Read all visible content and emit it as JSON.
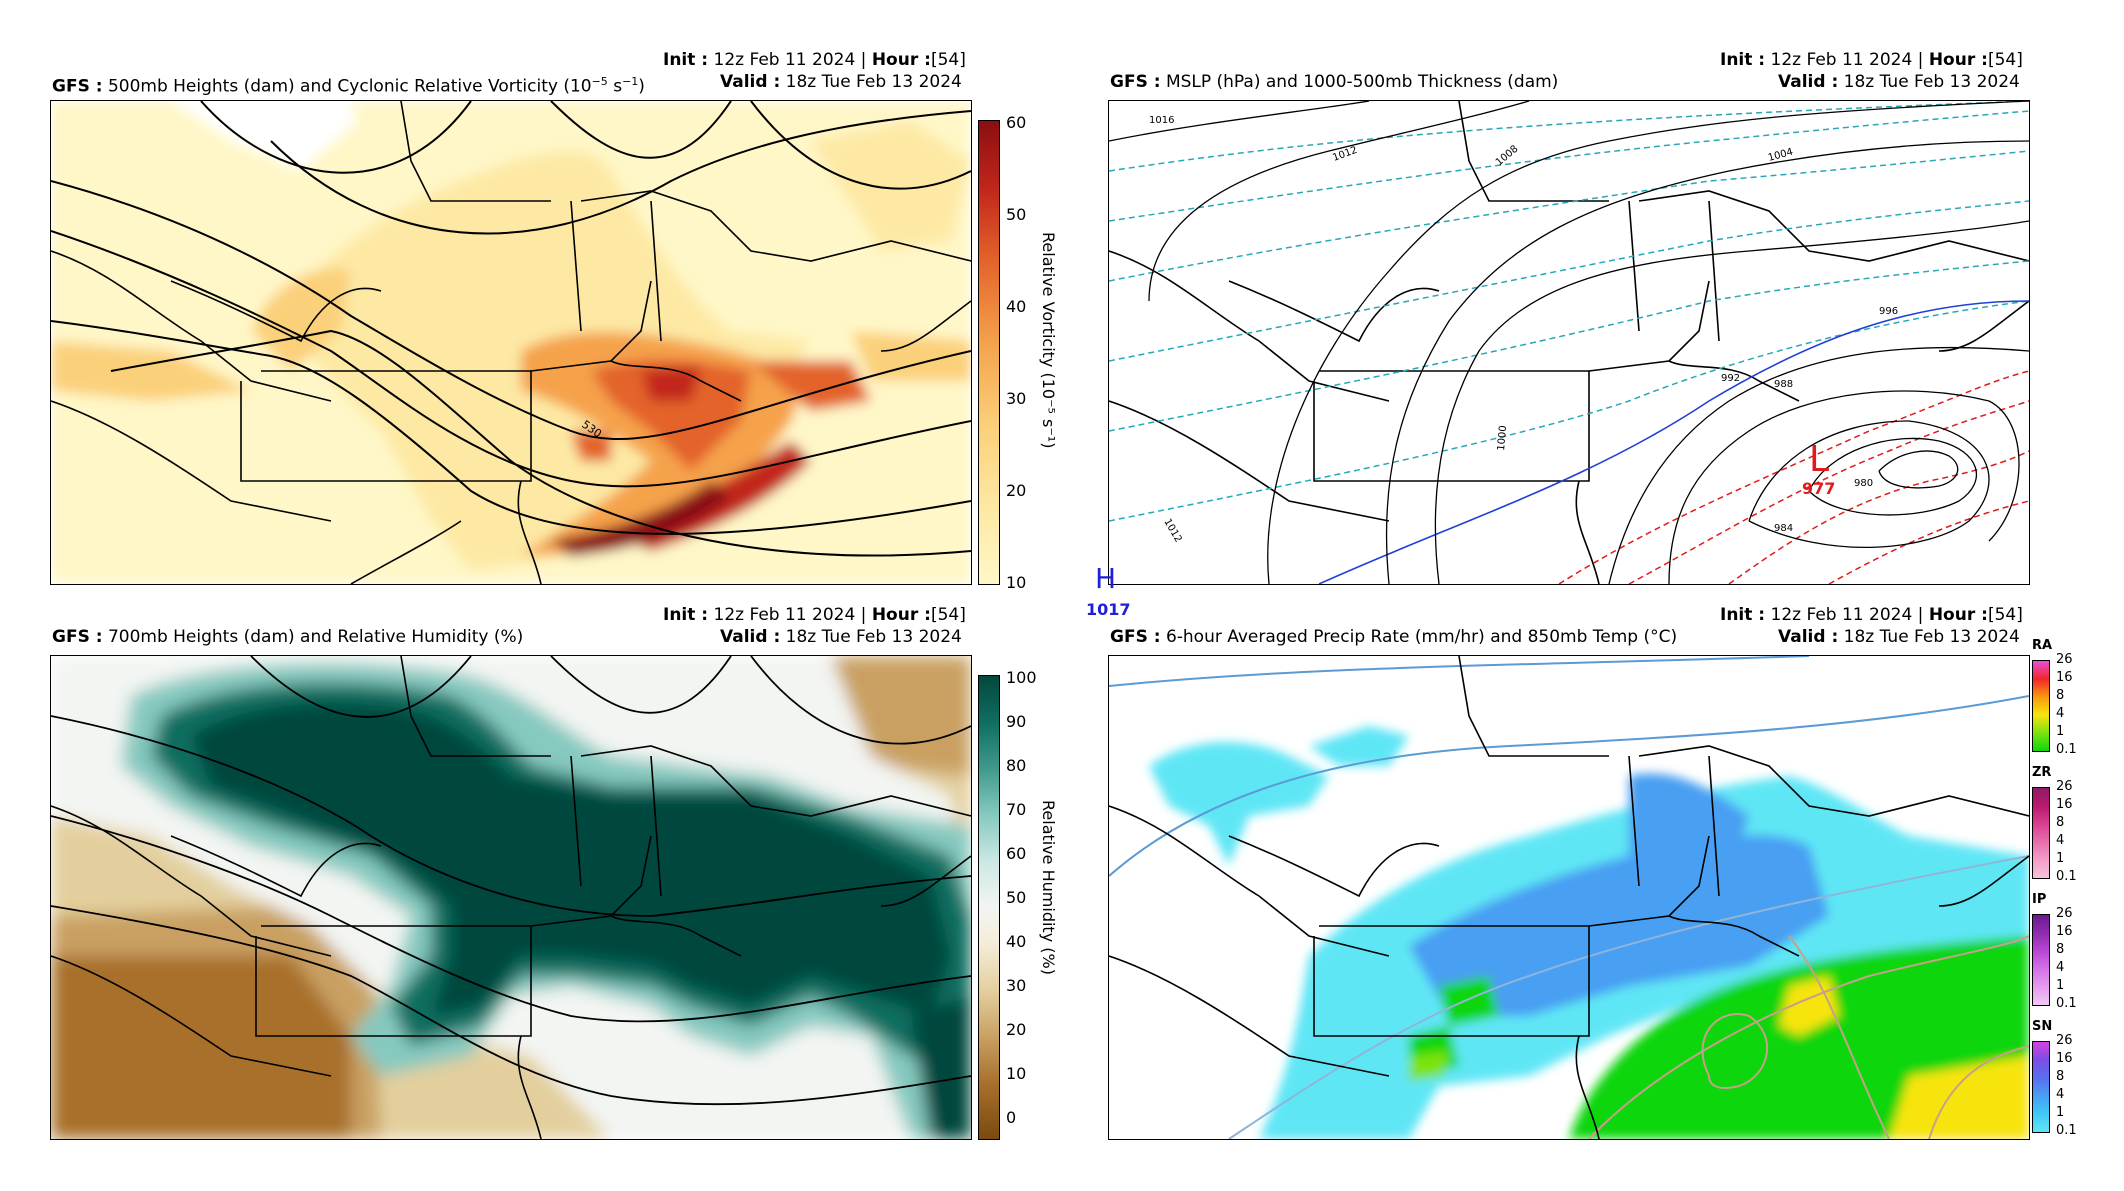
{
  "panels": {
    "p1": {
      "model": "GFS",
      "title": "500mb Heights (dam) and Cyclonic Relative Vorticity (10",
      "title_sup": "−5",
      "title_end": " s",
      "title_sup2": "−1",
      "title_close": ")",
      "init_label": "Init",
      "init_value": "12z Feb 11 2024",
      "hour_label": "Hour",
      "hour_value": "[54]",
      "valid_label": "Valid",
      "valid_value": "18z Tue Feb 13 2024",
      "colorbar_label": "Relative Vorticity (10⁻⁵ s⁻¹)",
      "colorbar_ticks": [
        "60",
        "50",
        "40",
        "30",
        "20",
        "10"
      ],
      "contour_labels": [
        "530",
        "530"
      ]
    },
    "p2": {
      "model": "GFS",
      "title": "MSLP (hPa) and 1000-500mb Thickness (dam)",
      "init_label": "Init",
      "init_value": "12z Feb 11 2024",
      "hour_label": "Hour",
      "hour_value": "[54]",
      "valid_label": "Valid",
      "valid_value": "18z Tue Feb 13 2024",
      "isobar_labels": [
        "1016",
        "1012",
        "1008",
        "1004",
        "1000",
        "996",
        "992",
        "988",
        "984",
        "980",
        "1012"
      ],
      "low_symbol": "L",
      "low_value": "977",
      "high_symbol": "H",
      "high_value": "1017"
    },
    "p3": {
      "model": "GFS",
      "title": "700mb Heights (dam) and Relative Humidity (%)",
      "init_label": "Init",
      "init_value": "12z Feb 11 2024",
      "hour_label": "Hour",
      "hour_value": "[54]",
      "valid_label": "Valid",
      "valid_value": "18z Tue Feb 13 2024",
      "colorbar_label": "Relative Humidity (%)",
      "colorbar_ticks": [
        "100",
        "90",
        "80",
        "70",
        "60",
        "50",
        "40",
        "30",
        "20",
        "10",
        "0"
      ]
    },
    "p4": {
      "model": "GFS",
      "title": "6-hour Averaged Precip Rate (mm/hr) and 850mb Temp (°C)",
      "init_label": "Init",
      "init_value": "12z Feb 11 2024",
      "hour_label": "Hour",
      "hour_value": "[54]",
      "valid_label": "Valid",
      "valid_value": "18z Tue Feb 13 2024",
      "ptype": [
        {
          "code": "RA",
          "ticks": [
            "26",
            "16",
            "8",
            "4",
            "1",
            "0.1"
          ]
        },
        {
          "code": "ZR",
          "ticks": [
            "26",
            "16",
            "8",
            "4",
            "1",
            "0.1"
          ]
        },
        {
          "code": "IP",
          "ticks": [
            "26",
            "16",
            "8",
            "4",
            "1",
            "0.1"
          ]
        },
        {
          "code": "SN",
          "ticks": [
            "26",
            "16",
            "8",
            "4",
            "1",
            "0.1"
          ]
        }
      ]
    }
  },
  "colors": {
    "vorticity": [
      "#fff7c8",
      "#fde9a4",
      "#fbd07a",
      "#f5a24c",
      "#e3632a",
      "#c2271b",
      "#8a0f12"
    ],
    "humidity": [
      "#7a4a10",
      "#a8702c",
      "#c9a062",
      "#e3cf9d",
      "#f4ecd8",
      "#f3f5f3",
      "#cbe8e4",
      "#86c9bf",
      "#3f9a8c",
      "#0f6e61",
      "#05473c"
    ],
    "rain": [
      "#0fd60f",
      "#7be30f",
      "#f7e40f",
      "#f79a0f",
      "#f2272b",
      "#e84fd6"
    ],
    "freezing": [
      "#f7c3dd",
      "#f29fc8",
      "#e86fae",
      "#d9408f",
      "#b81a6e",
      "#901a66"
    ],
    "sleet": [
      "#f3c8f6",
      "#e59cee",
      "#d272e5",
      "#b847d3",
      "#902bb0",
      "#6a1c8c"
    ],
    "snow": [
      "#5fe6f5",
      "#3fc9f7",
      "#4a9ff2",
      "#5a6ff0",
      "#7a4fe3",
      "#d93fe3"
    ],
    "isobar": "#000000",
    "thickness": "#27a8b8",
    "low": "#e01b1b",
    "high": "#1f1fd6",
    "zero_line": "#1f3fd6",
    "warm_thickness": "#e01b1b"
  }
}
